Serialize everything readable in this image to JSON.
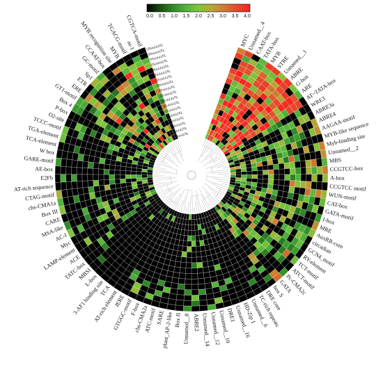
{
  "chart_data": {
    "type": "heatmap",
    "layout": "circular-fan",
    "colorbar": {
      "ticks": [
        "0.0",
        "0.5",
        "1.0",
        "1.5",
        "2.0",
        "2.5",
        "3.0",
        "3.5",
        "4.0"
      ],
      "min": 0,
      "max": 4,
      "colors": [
        "#000000",
        "#1a4d12",
        "#2f8a26",
        "#4fb23c",
        "#7fc63a",
        "#b7a638",
        "#d07a30",
        "#e4492c",
        "#ff1e1e"
      ]
    },
    "motifs": [
      "MYC",
      "Unnamed__4",
      "CAAT-box",
      "TATA-box",
      "MYB",
      "STRE",
      "Unnamed__1",
      "ABRE",
      "G-box",
      "ARE",
      "AT~TATA-box",
      "WRE3",
      "ABRE3a",
      "ABRE4",
      "AAGAA-motif",
      "MYB-like sequence",
      "Myb-binding site",
      "Unnamed__2",
      "MBS",
      "CCGTCC-box",
      "A-box",
      "CCGTCC motif",
      "WUN-motif",
      "CAT-box",
      "GATA-motif",
      "I-box",
      "MRE",
      "AuxRR-core",
      "circadian",
      "GCN4_motif",
      "RY-element",
      "TCT-motif",
      "ATCT-motif",
      "Pc-CMA2c",
      "GATA",
      "box S",
      "DRE core",
      "TC-rich repeats",
      "Unnamed__6",
      "HD-Zip 1",
      "Unnamed__16",
      "DRE1",
      "Unnamed__10",
      "Unnamed__12",
      "Unnamed__14",
      "ABRE2",
      "Unnamed__8",
      "Box II",
      "plant_AP-2-like",
      "SARE",
      "ATC-motif",
      "chs-CMA2a",
      "F-box",
      "GTGGC-motif",
      "JERE",
      "AT-rich element",
      "TCA",
      "3-AF1 binding site",
      "L-box",
      "MBSI",
      "TATC-box",
      "ACE",
      "LAMP-element",
      "Myc",
      "AC-I",
      "MSA-like",
      "CARE",
      "Box III",
      "chs-CMA1a",
      "CTAG-motif",
      "AT-rich sequence",
      "E2Fb",
      "AE-box",
      "GARE-motif",
      "W box",
      "TCA-element",
      "TGA-element",
      "TCCC-motif",
      "O2-site",
      "P-box",
      "Box 4",
      "GT1-motif",
      "ERE",
      "ETR",
      "Sp1",
      "GC-motif",
      "CCAAT-box",
      "MYB recognition site",
      "MYB",
      "TGACG-motif",
      "as-1",
      "CGTCA-motif"
    ],
    "genes": [
      "TaTFPP1A",
      "TaTFPP1B",
      "TaTFPP1D",
      "TaTFPP2A",
      "TaTFPP2B",
      "TaTFPP2D",
      "TaTFPP3A",
      "TaTFPP3B",
      "TaTFPP3D",
      "TaTFPP4A",
      "TaTFPP4B",
      "TaTFPP4D",
      "TaTFPP5A",
      "TaTFPP5B",
      "TaTFPP5D",
      "TaTFPP6A",
      "TaTFPP6B",
      "TaTFPP6D"
    ]
  }
}
